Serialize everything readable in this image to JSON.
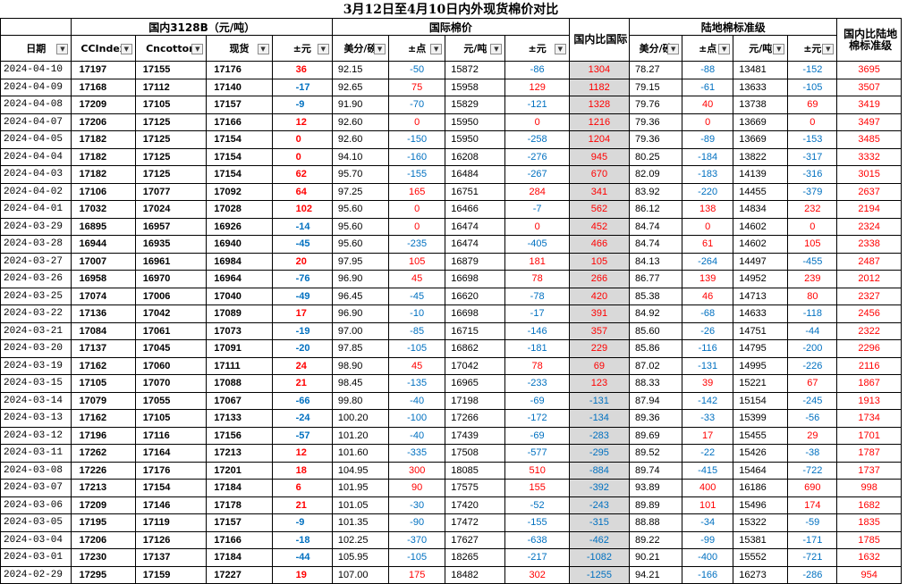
{
  "title": "3月12日至4月10日内外现货棉价对比",
  "groups": {
    "domestic": "国内3128B（元/吨）",
    "intl": "国际棉价",
    "ratio1": "国内比国际",
    "land": "陆地棉标准级",
    "ratio2": "国内比陆地棉标准级"
  },
  "headers": [
    "日期",
    "CCIndex",
    "Cncotton",
    "现货",
    "±元",
    "美分/磅",
    "±点",
    "元/吨",
    "±元",
    "美分/磅",
    "±点",
    "元/吨",
    "±元"
  ],
  "colors": {
    "positive": "#ff0000",
    "negative": "#0070c0",
    "gray_col": "#d9d9d9"
  },
  "rows": [
    [
      "2024-04-10",
      "17197",
      "17155",
      "17176",
      "36",
      "92.15",
      "-50",
      "15872",
      "-86",
      "1304",
      "78.27",
      "-88",
      "13481",
      "-152",
      "3695"
    ],
    [
      "2024-04-09",
      "17168",
      "17112",
      "17140",
      "-17",
      "92.65",
      "75",
      "15958",
      "129",
      "1182",
      "79.15",
      "-61",
      "13633",
      "-105",
      "3507"
    ],
    [
      "2024-04-08",
      "17209",
      "17105",
      "17157",
      "-9",
      "91.90",
      "-70",
      "15829",
      "-121",
      "1328",
      "79.76",
      "40",
      "13738",
      "69",
      "3419"
    ],
    [
      "2024-04-07",
      "17206",
      "17125",
      "17166",
      "12",
      "92.60",
      "0",
      "15950",
      "0",
      "1216",
      "79.36",
      "0",
      "13669",
      "0",
      "3497"
    ],
    [
      "2024-04-05",
      "17182",
      "17125",
      "17154",
      "0",
      "92.60",
      "-150",
      "15950",
      "-258",
      "1204",
      "79.36",
      "-89",
      "13669",
      "-153",
      "3485"
    ],
    [
      "2024-04-04",
      "17182",
      "17125",
      "17154",
      "0",
      "94.10",
      "-160",
      "16208",
      "-276",
      "945",
      "80.25",
      "-184",
      "13822",
      "-317",
      "3332"
    ],
    [
      "2024-04-03",
      "17182",
      "17125",
      "17154",
      "62",
      "95.70",
      "-155",
      "16484",
      "-267",
      "670",
      "82.09",
      "-183",
      "14139",
      "-316",
      "3015"
    ],
    [
      "2024-04-02",
      "17106",
      "17077",
      "17092",
      "64",
      "97.25",
      "165",
      "16751",
      "284",
      "341",
      "83.92",
      "-220",
      "14455",
      "-379",
      "2637"
    ],
    [
      "2024-04-01",
      "17032",
      "17024",
      "17028",
      "102",
      "95.60",
      "0",
      "16466",
      "-7",
      "562",
      "86.12",
      "138",
      "14834",
      "232",
      "2194"
    ],
    [
      "2024-03-29",
      "16895",
      "16957",
      "16926",
      "-14",
      "95.60",
      "0",
      "16474",
      "0",
      "452",
      "84.74",
      "0",
      "14602",
      "0",
      "2324"
    ],
    [
      "2024-03-28",
      "16944",
      "16935",
      "16940",
      "-45",
      "95.60",
      "-235",
      "16474",
      "-405",
      "466",
      "84.74",
      "61",
      "14602",
      "105",
      "2338"
    ],
    [
      "2024-03-27",
      "17007",
      "16961",
      "16984",
      "20",
      "97.95",
      "105",
      "16879",
      "181",
      "105",
      "84.13",
      "-264",
      "14497",
      "-455",
      "2487"
    ],
    [
      "2024-03-26",
      "16958",
      "16970",
      "16964",
      "-76",
      "96.90",
      "45",
      "16698",
      "78",
      "266",
      "86.77",
      "139",
      "14952",
      "239",
      "2012"
    ],
    [
      "2024-03-25",
      "17074",
      "17006",
      "17040",
      "-49",
      "96.45",
      "-45",
      "16620",
      "-78",
      "420",
      "85.38",
      "46",
      "14713",
      "80",
      "2327"
    ],
    [
      "2024-03-22",
      "17136",
      "17042",
      "17089",
      "17",
      "96.90",
      "-10",
      "16698",
      "-17",
      "391",
      "84.92",
      "-68",
      "14633",
      "-118",
      "2456"
    ],
    [
      "2024-03-21",
      "17084",
      "17061",
      "17073",
      "-19",
      "97.00",
      "-85",
      "16715",
      "-146",
      "357",
      "85.60",
      "-26",
      "14751",
      "-44",
      "2322"
    ],
    [
      "2024-03-20",
      "17137",
      "17045",
      "17091",
      "-20",
      "97.85",
      "-105",
      "16862",
      "-181",
      "229",
      "85.86",
      "-116",
      "14795",
      "-200",
      "2296"
    ],
    [
      "2024-03-19",
      "17162",
      "17060",
      "17111",
      "24",
      "98.90",
      "45",
      "17042",
      "78",
      "69",
      "87.02",
      "-131",
      "14995",
      "-226",
      "2116"
    ],
    [
      "2024-03-15",
      "17105",
      "17070",
      "17088",
      "21",
      "98.45",
      "-135",
      "16965",
      "-233",
      "123",
      "88.33",
      "39",
      "15221",
      "67",
      "1867"
    ],
    [
      "2024-03-14",
      "17079",
      "17055",
      "17067",
      "-66",
      "99.80",
      "-40",
      "17198",
      "-69",
      "-131",
      "87.94",
      "-142",
      "15154",
      "-245",
      "1913"
    ],
    [
      "2024-03-13",
      "17162",
      "17105",
      "17133",
      "-24",
      "100.20",
      "-100",
      "17266",
      "-172",
      "-134",
      "89.36",
      "-33",
      "15399",
      "-56",
      "1734"
    ],
    [
      "2024-03-12",
      "17196",
      "17116",
      "17156",
      "-57",
      "101.20",
      "-40",
      "17439",
      "-69",
      "-283",
      "89.69",
      "17",
      "15455",
      "29",
      "1701"
    ],
    [
      "2024-03-11",
      "17262",
      "17164",
      "17213",
      "12",
      "101.60",
      "-335",
      "17508",
      "-577",
      "-295",
      "89.52",
      "-22",
      "15426",
      "-38",
      "1787"
    ],
    [
      "2024-03-08",
      "17226",
      "17176",
      "17201",
      "18",
      "104.95",
      "300",
      "18085",
      "510",
      "-884",
      "89.74",
      "-415",
      "15464",
      "-722",
      "1737"
    ],
    [
      "2024-03-07",
      "17213",
      "17154",
      "17184",
      "6",
      "101.95",
      "90",
      "17575",
      "155",
      "-392",
      "93.89",
      "400",
      "16186",
      "690",
      "998"
    ],
    [
      "2024-03-06",
      "17209",
      "17146",
      "17178",
      "21",
      "101.05",
      "-30",
      "17420",
      "-52",
      "-243",
      "89.89",
      "101",
      "15496",
      "174",
      "1682"
    ],
    [
      "2024-03-05",
      "17195",
      "17119",
      "17157",
      "-9",
      "101.35",
      "-90",
      "17472",
      "-155",
      "-315",
      "88.88",
      "-34",
      "15322",
      "-59",
      "1835"
    ],
    [
      "2024-03-04",
      "17206",
      "17126",
      "17166",
      "-18",
      "102.25",
      "-370",
      "17627",
      "-638",
      "-462",
      "89.22",
      "-99",
      "15381",
      "-171",
      "1785"
    ],
    [
      "2024-03-01",
      "17230",
      "17137",
      "17184",
      "-44",
      "105.95",
      "-105",
      "18265",
      "-217",
      "-1082",
      "90.21",
      "-400",
      "15552",
      "-721",
      "1632"
    ],
    [
      "2024-02-29",
      "17295",
      "17159",
      "17227",
      "19",
      "107.00",
      "175",
      "18482",
      "302",
      "-1255",
      "94.21",
      "-166",
      "16273",
      "-286",
      "954"
    ]
  ]
}
